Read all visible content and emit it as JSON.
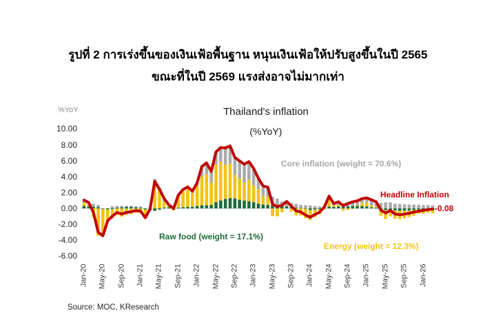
{
  "figure_title": {
    "line1": "รูปที่ 2 การเร่งขึ้นของเงินเฟ้อพื้นฐาน หนุนเงินเฟ้อให้ปรับสูงขึ้นในปี 2565",
    "line2": "ขณะที่ในปี 2569 แรงส่งอาจไม่มากเท่า"
  },
  "source": "Source: MOC, KResearch",
  "chart_data": {
    "type": "bar",
    "subtype": "stacked-bars-with-line",
    "title": "Thailand's inflation",
    "subtitle": "(%YoY)",
    "unit_label": "%YoY",
    "ylim": [
      -6,
      10
    ],
    "ytick_step": 2,
    "yticks": [
      "10.00",
      "8.00",
      "6.00",
      "4.00",
      "2.00",
      "0.00",
      "-2.00",
      "-4.00",
      "-6.00"
    ],
    "grid": "zero-line-only",
    "x_label_every": 4,
    "categories": [
      "Jan-20",
      "Feb-20",
      "Mar-20",
      "Apr-20",
      "May-20",
      "Jun-20",
      "Jul-20",
      "Aug-20",
      "Sep-20",
      "Oct-20",
      "Nov-20",
      "Dec-20",
      "Jan-21",
      "Feb-21",
      "Mar-21",
      "Apr-21",
      "May-21",
      "Jun-21",
      "Jul-21",
      "Aug-21",
      "Sep-21",
      "Oct-21",
      "Nov-21",
      "Dec-21",
      "Jan-22",
      "Feb-22",
      "Mar-22",
      "Apr-22",
      "May-22",
      "Jun-22",
      "Jul-22",
      "Aug-22",
      "Sep-22",
      "Oct-22",
      "Nov-22",
      "Dec-22",
      "Jan-23",
      "Feb-23",
      "Mar-23",
      "Apr-23",
      "May-23",
      "Jun-23",
      "Jul-23",
      "Aug-23",
      "Sep-23",
      "Oct-23",
      "Nov-23",
      "Dec-23",
      "Jan-24",
      "Feb-24",
      "Mar-24",
      "Apr-24",
      "May-24",
      "Jun-24",
      "Jul-24",
      "Aug-24",
      "Sep-24",
      "Oct-24",
      "Nov-24",
      "Dec-24",
      "Jan-25",
      "Feb-25",
      "Mar-25",
      "Apr-25",
      "May-25",
      "Jun-25",
      "Jul-25",
      "Aug-25",
      "Sep-25",
      "Oct-25",
      "Nov-25",
      "Dec-25",
      "Jan-26",
      "Feb-26",
      "Mar-26"
    ],
    "series": [
      {
        "name": "Raw food (weight = 17.1%)",
        "role": "raw-food-contribution",
        "color": "#1E6B3C",
        "values": [
          0.3,
          0.25,
          0.2,
          0.15,
          -0.1,
          -0.15,
          -0.1,
          0.1,
          0.15,
          0.2,
          0.2,
          0.15,
          0.1,
          -0.15,
          -0.25,
          -0.3,
          -0.15,
          0.1,
          0.15,
          0.2,
          0.1,
          0.15,
          0.2,
          0.2,
          0.3,
          0.4,
          0.4,
          0.45,
          0.8,
          1.0,
          1.2,
          1.3,
          1.25,
          1.1,
          1.0,
          0.9,
          0.8,
          0.6,
          0.5,
          0.45,
          0.4,
          0.3,
          0.25,
          0.3,
          0.25,
          0.1,
          0.05,
          -0.05,
          -0.2,
          -0.15,
          -0.1,
          0.05,
          0.25,
          0.2,
          0.25,
          0.2,
          0.25,
          0.3,
          0.3,
          0.3,
          0.25,
          0.15,
          0.1,
          -0.1,
          -0.2,
          -0.15,
          -0.25,
          -0.3,
          -0.28,
          -0.25,
          -0.2,
          -0.15,
          -0.12,
          -0.1,
          -0.08
        ]
      },
      {
        "name": "Energy (weight = 12.3%)",
        "role": "energy-contribution",
        "color": "#F2C314",
        "values": [
          0.42,
          0.08,
          -1.12,
          -3.43,
          -3.35,
          -1.38,
          -1.16,
          -0.81,
          -1.03,
          -0.83,
          -0.74,
          -0.55,
          -0.59,
          -1.05,
          0.11,
          3.5,
          2.24,
          0.78,
          0.2,
          -0.27,
          1.45,
          2.08,
          2.31,
          1.77,
          2.56,
          3.61,
          3.92,
          2.79,
          4.69,
          4.89,
          4.3,
          4.34,
          2.96,
          2.64,
          2.28,
          2.71,
          2.07,
          1.83,
          1.09,
          1.05,
          -0.96,
          -1.0,
          -0.48,
          0.02,
          -0.39,
          -0.88,
          -0.9,
          -1.19,
          -1.28,
          -0.92,
          -0.63,
          -0.12,
          1.01,
          0.17,
          0.21,
          -0.29,
          -0.18,
          -0.01,
          0.09,
          0.37,
          0.48,
          0.23,
          0.13,
          -0.81,
          -1.14,
          -0.85,
          -1.04,
          -1.05,
          -0.97,
          -0.84,
          -0.73,
          -0.54,
          -0.55,
          -0.44,
          -0.53
        ]
      },
      {
        "name": "Core inflation (weight = 70.6%)",
        "role": "core-contribution",
        "color": "#ABABAB",
        "values": [
          0.33,
          0.41,
          0.38,
          0.29,
          0.01,
          -0.04,
          0.28,
          0.21,
          0.18,
          0.13,
          0.13,
          0.13,
          0.15,
          0.03,
          0.06,
          0.21,
          0.35,
          0.37,
          0.1,
          0.05,
          0.13,
          0.15,
          0.2,
          0.2,
          0.37,
          1.27,
          1.41,
          1.41,
          1.61,
          1.77,
          2.11,
          2.22,
          2.2,
          2.24,
          2.27,
          2.28,
          2.15,
          1.36,
          1.24,
          1.17,
          1.09,
          0.93,
          0.61,
          0.56,
          0.44,
          0.47,
          0.41,
          0.41,
          0.37,
          0.3,
          0.26,
          0.26,
          0.28,
          0.25,
          0.37,
          0.44,
          0.54,
          0.54,
          0.56,
          0.56,
          0.59,
          0.7,
          0.61,
          0.69,
          0.77,
          0.75,
          0.59,
          0.56,
          0.53,
          0.49,
          0.48,
          0.46,
          0.42,
          0.41,
          0.39
        ]
      }
    ],
    "line": {
      "name": "Headline Inflation",
      "color": "#C00000",
      "end_label": "-0.08",
      "values": [
        1.05,
        0.74,
        -0.54,
        -2.99,
        -3.44,
        -1.57,
        -0.98,
        -0.5,
        -0.7,
        -0.5,
        -0.41,
        -0.27,
        -0.34,
        -1.17,
        -0.08,
        3.41,
        2.44,
        1.25,
        0.45,
        -0.02,
        1.68,
        2.38,
        2.71,
        2.17,
        3.23,
        5.28,
        5.73,
        4.65,
        7.1,
        7.66,
        7.61,
        7.86,
        6.41,
        5.98,
        5.55,
        5.89,
        5.02,
        3.79,
        2.83,
        2.67,
        0.53,
        0.23,
        0.38,
        0.88,
        0.3,
        -0.31,
        -0.44,
        -0.83,
        -1.11,
        -0.77,
        -0.47,
        0.19,
        1.54,
        0.62,
        0.83,
        0.35,
        0.61,
        0.83,
        0.95,
        1.23,
        1.32,
        1.08,
        0.84,
        -0.22,
        -0.57,
        -0.25,
        -0.7,
        -0.79,
        -0.72,
        -0.6,
        -0.45,
        -0.35,
        -0.25,
        -0.15,
        -0.08
      ]
    },
    "legend_position": "annotations-inside-plot"
  }
}
